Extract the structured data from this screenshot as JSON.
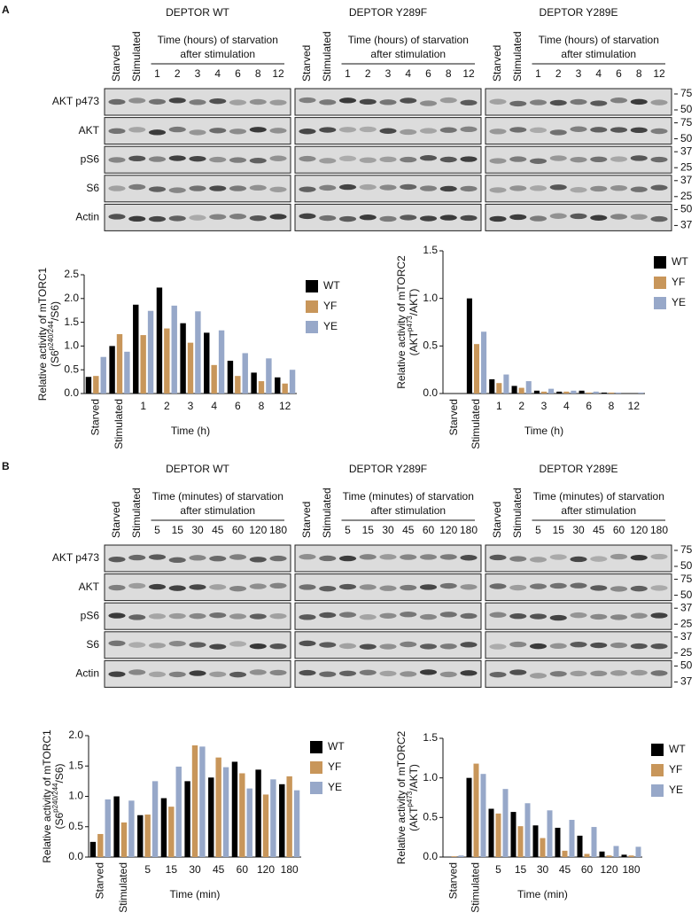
{
  "panels": [
    {
      "label": "A",
      "groups": [
        "DEPTOR WT",
        "DEPTOR Y289F",
        "DEPTOR Y289E"
      ],
      "header": [
        "Time (hours) of starvation",
        "after stimulation"
      ],
      "lanes": [
        "Starved",
        "Stimulated",
        "1",
        "2",
        "3",
        "4",
        "6",
        "8",
        "12"
      ],
      "rows": [
        "AKT p473",
        "AKT",
        "pS6",
        "S6",
        "Actin"
      ],
      "markers": [
        [
          "75",
          "50"
        ],
        [
          "75",
          "50"
        ],
        [
          "37",
          "25"
        ],
        [
          "37",
          "25"
        ],
        [
          "50",
          "37"
        ]
      ]
    },
    {
      "label": "B",
      "groups": [
        "DEPTOR WT",
        "DEPTOR Y289F",
        "DEPTOR Y289E"
      ],
      "header": [
        "Time (minutes) of starvation",
        "after stimulation"
      ],
      "lanes": [
        "Starved",
        "Stimulated",
        "5",
        "15",
        "30",
        "45",
        "60",
        "120",
        "180"
      ],
      "rows": [
        "AKT p473",
        "AKT",
        "pS6",
        "S6",
        "Actin"
      ],
      "markers": [
        [
          "75",
          "50"
        ],
        [
          "75",
          "50"
        ],
        [
          "37",
          "25"
        ],
        [
          "37",
          "25"
        ],
        [
          "50",
          "37"
        ]
      ]
    }
  ],
  "chart_data": [
    {
      "type": "bar",
      "ylabel": {
        "text": "Relative activity of mTORC1",
        "sub": [
          "(S6",
          "p240/244",
          "/S6)"
        ]
      },
      "xlabel": "Time (h)",
      "categories": [
        "Starved",
        "Stimulated",
        "1",
        "2",
        "3",
        "4",
        "6",
        "8",
        "12"
      ],
      "series": [
        {
          "name": "WT",
          "color": "#000000",
          "values": [
            0.35,
            1.0,
            1.87,
            2.23,
            1.48,
            1.28,
            0.69,
            0.44,
            0.34
          ]
        },
        {
          "name": "YF",
          "color": "#c8965a",
          "values": [
            0.37,
            1.25,
            1.23,
            1.37,
            1.07,
            0.6,
            0.37,
            0.26,
            0.21
          ]
        },
        {
          "name": "YE",
          "color": "#97a8c9",
          "values": [
            0.77,
            0.88,
            1.74,
            1.85,
            1.73,
            1.33,
            0.85,
            0.74,
            0.5
          ]
        }
      ],
      "ylim": [
        0,
        2.5
      ],
      "yticks": [
        {
          "value": 0,
          "label": "0.0"
        },
        0.5,
        {
          "value": 1,
          "label": "1.0"
        },
        1.5,
        {
          "value": 2,
          "label": "2.0"
        },
        2.5
      ],
      "legend": "right"
    },
    {
      "type": "bar",
      "ylabel": {
        "text": "Relative activity of mTORC2",
        "sub": [
          "(AKT",
          "p473",
          "/AKT)"
        ]
      },
      "xlabel": "Time (h)",
      "categories": [
        "Starved",
        "Stimulated",
        "1",
        "2",
        "3",
        "4",
        "6",
        "8",
        "12"
      ],
      "series": [
        {
          "name": "WT",
          "color": "#000000",
          "values": [
            0,
            1.0,
            0.15,
            0.08,
            0.03,
            0.02,
            0.03,
            0.01,
            0
          ]
        },
        {
          "name": "YF",
          "color": "#c8965a",
          "values": [
            0,
            0.52,
            0.11,
            0.06,
            0.02,
            0.02,
            0.01,
            0.01,
            0
          ]
        },
        {
          "name": "YE",
          "color": "#97a8c9",
          "values": [
            0,
            0.65,
            0.2,
            0.13,
            0.05,
            0.03,
            0.02,
            0.01,
            0.01
          ]
        }
      ],
      "ylim": [
        0,
        1.5
      ],
      "yticks": [
        {
          "value": 0,
          "label": "0.0"
        },
        0.5,
        {
          "value": 1,
          "label": "1.0"
        },
        1.5
      ],
      "legend": "right"
    },
    {
      "type": "bar",
      "ylabel": {
        "text": "Relative activity of mTORC1",
        "sub": [
          "(S6",
          "p240/244",
          "/S6)"
        ]
      },
      "xlabel": "Time (min)",
      "categories": [
        "Starved",
        "Stimulated",
        "5",
        "15",
        "30",
        "45",
        "60",
        "120",
        "180"
      ],
      "series": [
        {
          "name": "WT",
          "color": "#000000",
          "values": [
            0.25,
            1.0,
            0.69,
            0.97,
            1.25,
            1.31,
            1.57,
            1.44,
            1.2
          ]
        },
        {
          "name": "YF",
          "color": "#c8965a",
          "values": [
            0.38,
            0.57,
            0.7,
            0.83,
            1.84,
            1.64,
            1.38,
            1.03,
            1.33
          ]
        },
        {
          "name": "YE",
          "color": "#97a8c9",
          "values": [
            0.95,
            0.93,
            1.25,
            1.49,
            1.82,
            1.48,
            1.13,
            1.28,
            1.1
          ]
        }
      ],
      "ylim": [
        0,
        2
      ],
      "yticks": [
        {
          "value": 0,
          "label": "0.0"
        },
        0.5,
        {
          "value": 1,
          "label": "1.0"
        },
        1.5,
        {
          "value": 2,
          "label": "2.0"
        }
      ],
      "legend": "right"
    },
    {
      "type": "bar",
      "ylabel": {
        "text": "Relative activity of mTORC2",
        "sub": [
          "(AKT",
          "p473",
          "/AKT)"
        ]
      },
      "xlabel": "Time (min)",
      "categories": [
        "Starved",
        "Stimulated",
        "5",
        "15",
        "30",
        "45",
        "60",
        "120",
        "180"
      ],
      "series": [
        {
          "name": "WT",
          "color": "#000000",
          "values": [
            0,
            1.0,
            0.61,
            0.57,
            0.4,
            0.37,
            0.27,
            0.07,
            0.03
          ]
        },
        {
          "name": "YF",
          "color": "#c8965a",
          "values": [
            0.01,
            1.18,
            0.55,
            0.39,
            0.24,
            0.08,
            0.04,
            0.02,
            0.02
          ]
        },
        {
          "name": "YE",
          "color": "#97a8c9",
          "values": [
            0.02,
            1.05,
            0.86,
            0.68,
            0.59,
            0.47,
            0.38,
            0.14,
            0.13
          ]
        }
      ],
      "ylim": [
        0,
        1.5
      ],
      "yticks": [
        {
          "value": 0,
          "label": "0.0"
        },
        0.5,
        {
          "value": 1,
          "label": "1.0"
        },
        1.5
      ],
      "legend": "right"
    }
  ]
}
